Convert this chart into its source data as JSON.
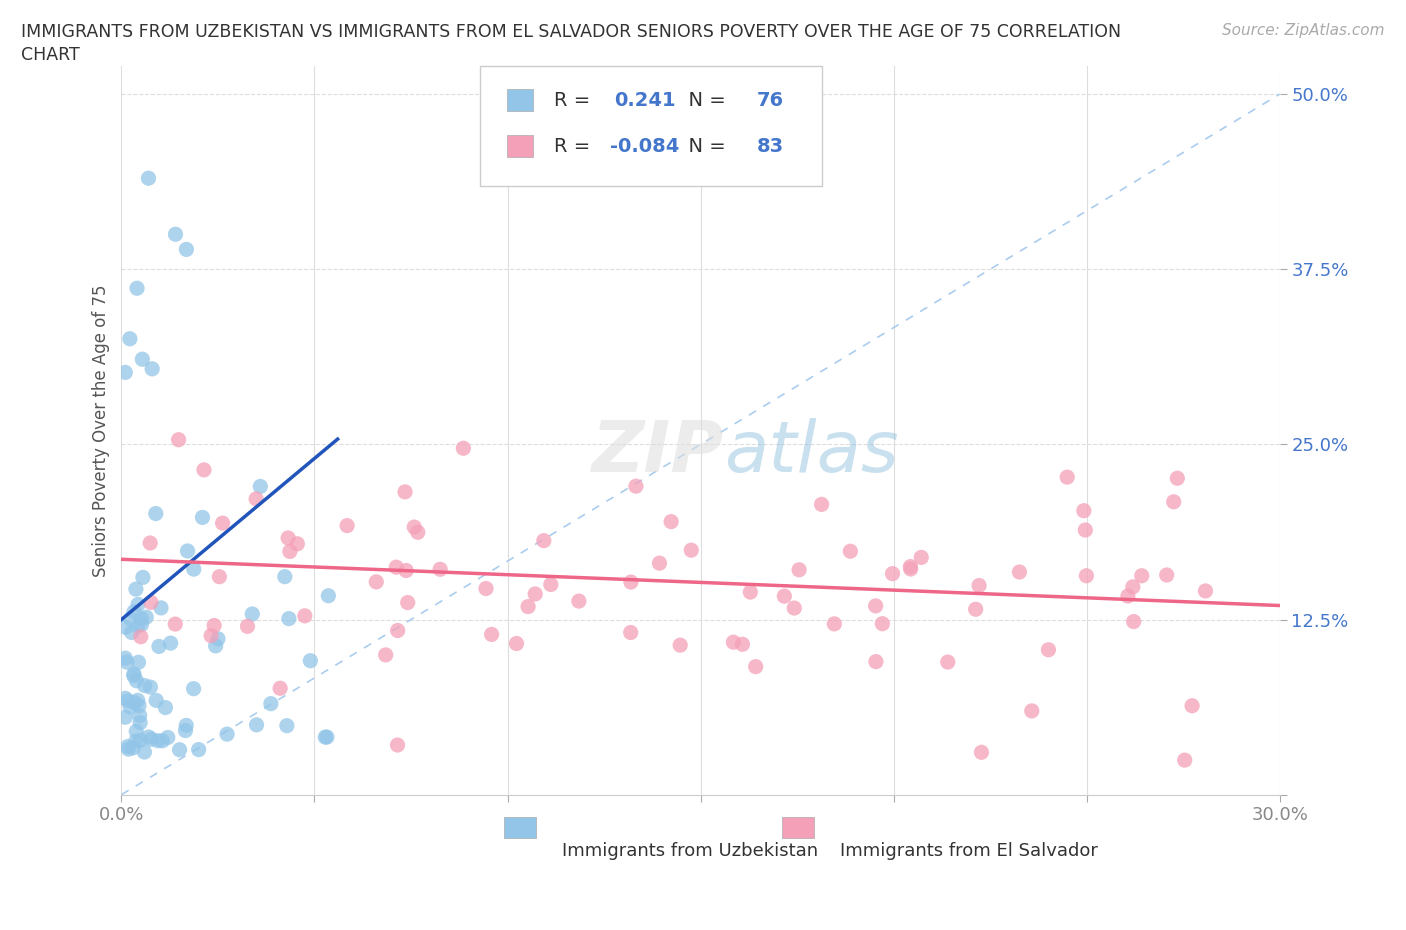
{
  "title_line1": "IMMIGRANTS FROM UZBEKISTAN VS IMMIGRANTS FROM EL SALVADOR SENIORS POVERTY OVER THE AGE OF 75 CORRELATION",
  "title_line2": "CHART",
  "source": "Source: ZipAtlas.com",
  "ylabel_label": "Seniors Poverty Over the Age of 75",
  "xlim": [
    0.0,
    0.3
  ],
  "ylim": [
    0.0,
    0.52
  ],
  "uzbekistan_color": "#92C5E8",
  "el_salvador_color": "#F4A0B8",
  "uzbekistan_R": 0.241,
  "uzbekistan_N": 76,
  "el_salvador_R": -0.084,
  "el_salvador_N": 83,
  "uzbekistan_line_color": "#2255BB",
  "el_salvador_line_color": "#EE6688",
  "diagonal_line_color": "#AACCEE",
  "background_color": "#FFFFFF",
  "grid_color": "#DDDDDD",
  "legend_text_color": "#333333",
  "legend_value_color_uz": "#4488CC",
  "legend_value_color_es": "#DD4499"
}
